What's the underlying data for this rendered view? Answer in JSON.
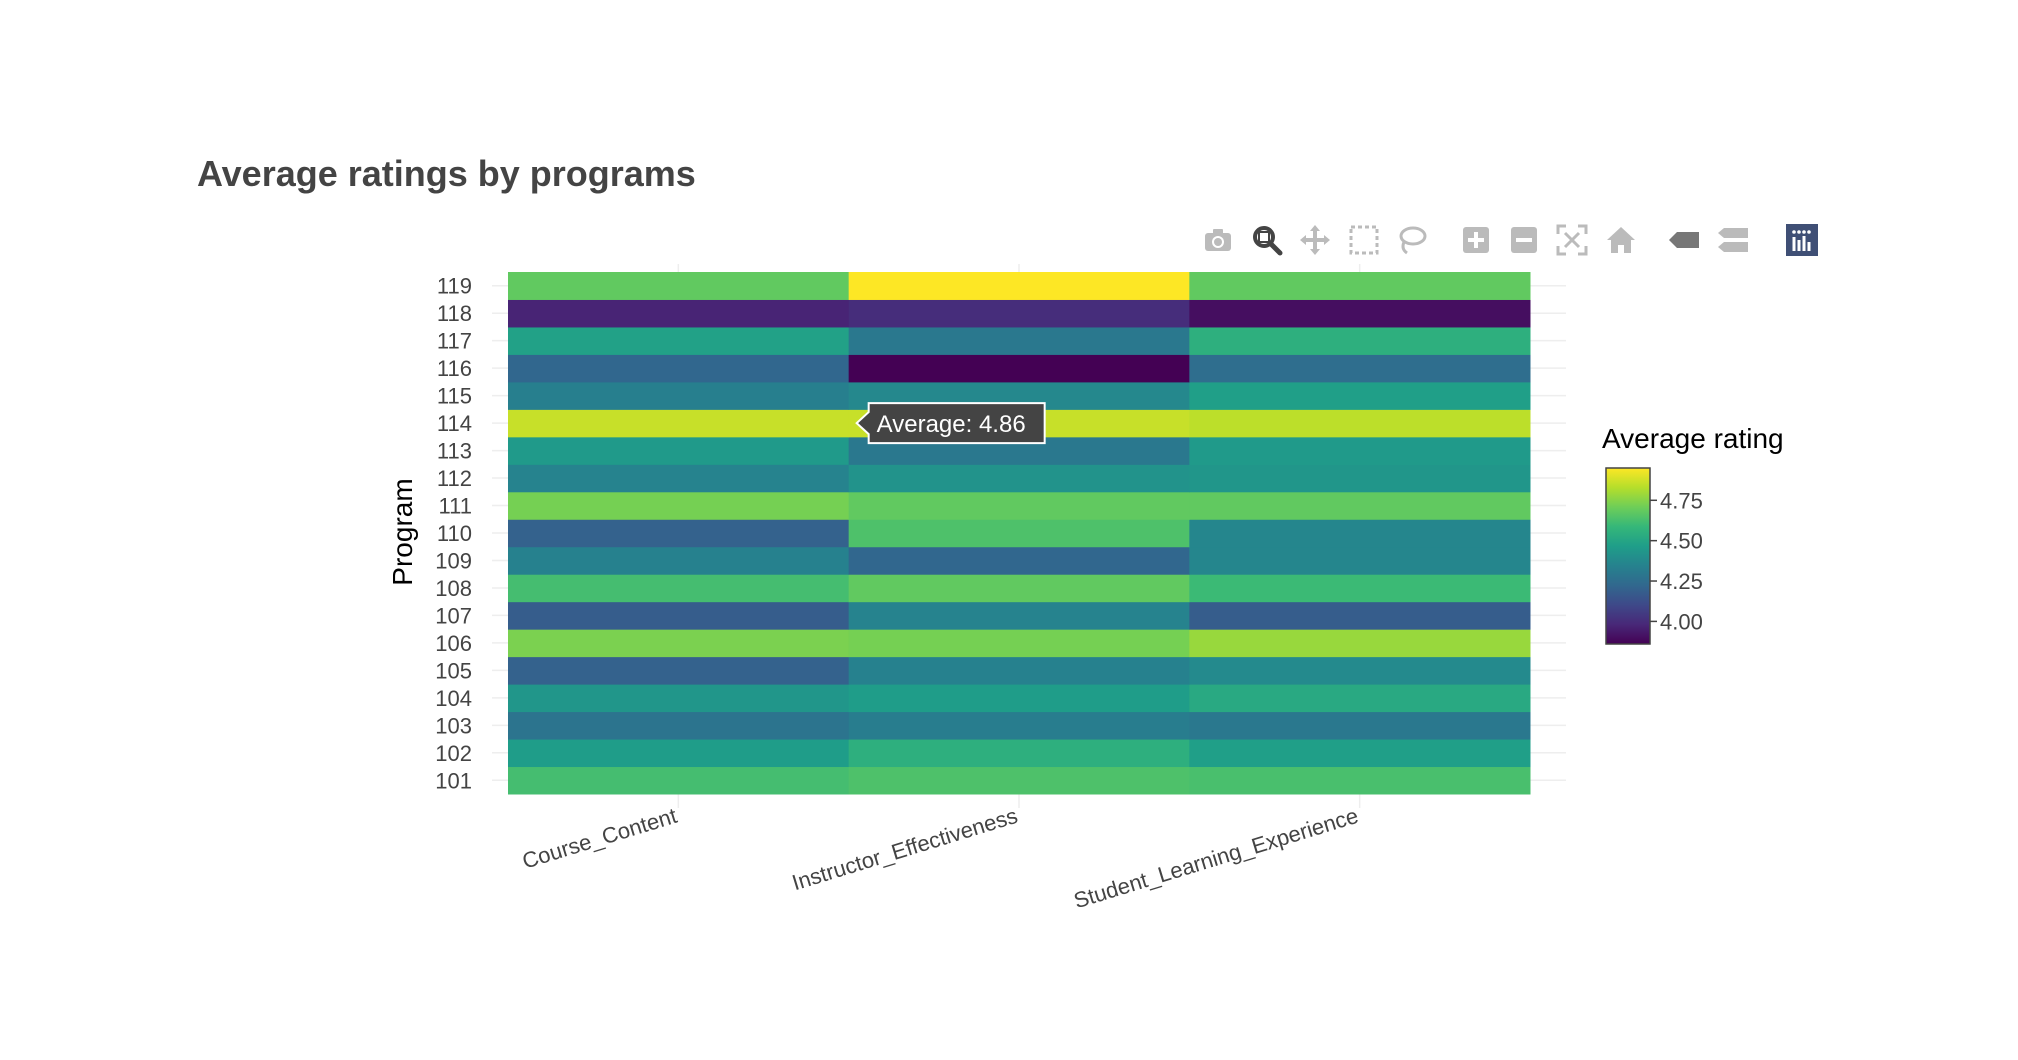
{
  "title": "Average ratings by programs",
  "toolbar": {
    "buttons": [
      {
        "name": "camera-icon",
        "active": false
      },
      {
        "name": "zoom-icon",
        "active": true
      },
      {
        "name": "pan-icon",
        "active": false
      },
      {
        "name": "box-select-icon",
        "active": false
      },
      {
        "name": "lasso-select-icon",
        "active": false
      },
      {
        "name": "zoom-in-icon",
        "active": false
      },
      {
        "name": "zoom-out-icon",
        "active": false
      },
      {
        "name": "autoscale-icon",
        "active": false
      },
      {
        "name": "reset-axes-icon",
        "active": false
      },
      {
        "name": "hover-closest-icon",
        "active": false
      },
      {
        "name": "hover-compare-icon",
        "active": false
      },
      {
        "name": "plotly-logo-icon",
        "active": false
      }
    ],
    "icon_color": "#bbbbbb",
    "active_color": "#444444",
    "logo_color": "#3f4f75"
  },
  "tooltip": {
    "text": "Average: 4.86"
  },
  "chart_data": {
    "type": "heatmap",
    "title": "Average ratings by programs",
    "xlabel": "",
    "ylabel": "Program",
    "x": [
      "Course_Content",
      "Instructor_Effectiveness",
      "Student_Learning_Experience"
    ],
    "y": [
      "101",
      "102",
      "103",
      "104",
      "105",
      "106",
      "107",
      "108",
      "109",
      "110",
      "111",
      "112",
      "113",
      "114",
      "115",
      "116",
      "117",
      "118",
      "119"
    ],
    "z": [
      [
        4.62,
        4.64,
        4.63
      ],
      [
        4.46,
        4.55,
        4.47
      ],
      [
        4.28,
        4.32,
        4.3
      ],
      [
        4.43,
        4.46,
        4.52
      ],
      [
        4.2,
        4.34,
        4.38
      ],
      [
        4.73,
        4.72,
        4.78
      ],
      [
        4.18,
        4.35,
        4.18
      ],
      [
        4.62,
        4.68,
        4.6
      ],
      [
        4.34,
        4.22,
        4.36
      ],
      [
        4.2,
        4.64,
        4.36
      ],
      [
        4.72,
        4.68,
        4.68
      ],
      [
        4.35,
        4.42,
        4.43
      ],
      [
        4.45,
        4.3,
        4.45
      ],
      [
        4.86,
        4.86,
        4.84
      ],
      [
        4.33,
        4.37,
        4.47
      ],
      [
        4.22,
        3.86,
        4.25
      ],
      [
        4.48,
        4.3,
        4.55
      ],
      [
        3.97,
        4.0,
        3.9
      ],
      [
        4.68,
        4.95,
        4.68
      ]
    ],
    "zlim": [
      3.86,
      4.95
    ],
    "colorscale": "Viridis",
    "colorscale_stops": [
      "#440154",
      "#482878",
      "#3e4989",
      "#31688e",
      "#26828e",
      "#1f9e89",
      "#35b779",
      "#6ece58",
      "#b5de2b",
      "#fde725"
    ],
    "colorbar": {
      "title": "Average rating",
      "tickvals": [
        4.0,
        4.25,
        4.5,
        4.75
      ],
      "ticktext": [
        "4.00",
        "4.25",
        "4.50",
        "4.75"
      ]
    },
    "hover": {
      "row": "114",
      "col": "Instructor_Effectiveness",
      "value": 4.86
    }
  }
}
